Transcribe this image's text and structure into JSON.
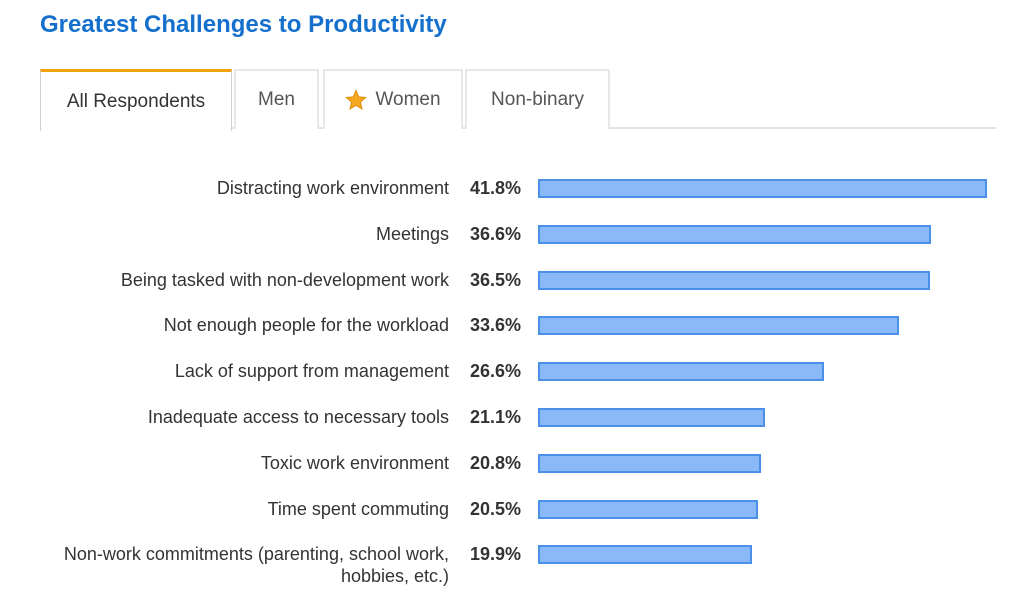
{
  "title": "Greatest Challenges to Productivity",
  "tabs": [
    {
      "label": "All Respondents",
      "active": true
    },
    {
      "label": "Men",
      "active": false
    },
    {
      "label": "Women",
      "active": false,
      "icon": "star-icon"
    },
    {
      "label": "Non-binary",
      "active": false
    }
  ],
  "colors": {
    "title": "#1470cc",
    "active_tab_accent": "#f0a30a",
    "bar_fill": "#8ab9fa",
    "bar_border": "#4a90e8",
    "star": "#f5a623"
  },
  "chart_data": {
    "type": "bar",
    "orientation": "horizontal",
    "categories": [
      "Distracting work environment",
      "Meetings",
      "Being tasked with non-development work",
      "Not enough people for the workload",
      "Lack of support from management",
      "Inadequate access to necessary tools",
      "Toxic work environment",
      "Time spent commuting",
      "Non-work commitments (parenting, school work, hobbies, etc.)"
    ],
    "values": [
      41.8,
      36.6,
      36.5,
      33.6,
      26.6,
      21.1,
      20.8,
      20.5,
      19.9
    ],
    "value_labels": [
      "41.8%",
      "36.6%",
      "36.5%",
      "33.6%",
      "26.6%",
      "21.1%",
      "20.8%",
      "20.5%",
      "19.9%"
    ],
    "unit": "%",
    "xlim": [
      0,
      41.8
    ]
  }
}
